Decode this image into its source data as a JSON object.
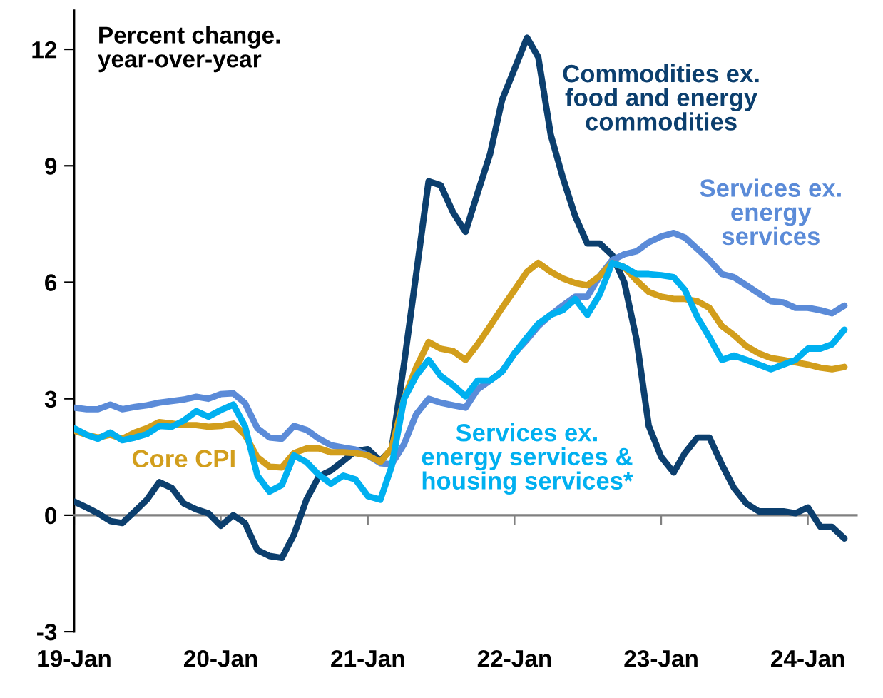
{
  "chart_data": {
    "type": "line",
    "ylabel": "Percent change.\nyear-over-year",
    "x": [
      "2019-01",
      "2019-02",
      "2019-03",
      "2019-04",
      "2019-05",
      "2019-06",
      "2019-07",
      "2019-08",
      "2019-09",
      "2019-10",
      "2019-11",
      "2019-12",
      "2020-01",
      "2020-02",
      "2020-03",
      "2020-04",
      "2020-05",
      "2020-06",
      "2020-07",
      "2020-08",
      "2020-09",
      "2020-10",
      "2020-11",
      "2020-12",
      "2021-01",
      "2021-02",
      "2021-03",
      "2021-04",
      "2021-05",
      "2021-06",
      "2021-07",
      "2021-08",
      "2021-09",
      "2021-10",
      "2021-11",
      "2021-12",
      "2022-01",
      "2022-02",
      "2022-03",
      "2022-04",
      "2022-05",
      "2022-06",
      "2022-07",
      "2022-08",
      "2022-09",
      "2022-10",
      "2022-11",
      "2022-12",
      "2023-01",
      "2023-02",
      "2023-03",
      "2023-04",
      "2023-05",
      "2023-06",
      "2023-07",
      "2023-08",
      "2023-09",
      "2023-10",
      "2023-11",
      "2023-12",
      "2024-01",
      "2024-02",
      "2024-03",
      "2024-04"
    ],
    "series": [
      {
        "name": "Commodities ex.\nfood and energy\ncommodities",
        "color": "#0c3f6e",
        "values": [
          0.35,
          0.2,
          0.05,
          -0.15,
          -0.2,
          0.1,
          0.4,
          0.85,
          0.7,
          0.3,
          0.15,
          0.05,
          -0.27,
          0.0,
          -0.2,
          -0.9,
          -1.05,
          -1.1,
          -0.5,
          0.4,
          1.0,
          1.15,
          1.4,
          1.65,
          1.7,
          1.4,
          1.7,
          3.9,
          6.2,
          8.6,
          8.5,
          7.8,
          7.3,
          8.3,
          9.3,
          10.7,
          11.5,
          12.3,
          11.8,
          9.8,
          8.7,
          7.7,
          7.0,
          7.0,
          6.7,
          6.0,
          4.5,
          2.3,
          1.5,
          1.1,
          1.6,
          2.0,
          2.0,
          1.3,
          0.7,
          0.3,
          0.1,
          0.1,
          0.1,
          0.05,
          0.2,
          -0.3,
          -0.3,
          -0.6
        ]
      },
      {
        "name": "Services ex.\nenergy\nservices",
        "color": "#5b8bd8",
        "values": [
          2.77,
          2.73,
          2.73,
          2.85,
          2.73,
          2.79,
          2.83,
          2.9,
          2.94,
          2.98,
          3.05,
          3.0,
          3.12,
          3.14,
          2.89,
          2.24,
          2.0,
          1.97,
          2.3,
          2.2,
          1.97,
          1.8,
          1.74,
          1.69,
          1.54,
          1.34,
          1.31,
          1.83,
          2.6,
          3.0,
          2.9,
          2.83,
          2.77,
          3.24,
          3.47,
          3.7,
          4.17,
          4.52,
          4.87,
          5.16,
          5.4,
          5.63,
          5.63,
          6.16,
          6.57,
          6.72,
          6.8,
          7.03,
          7.18,
          7.27,
          7.15,
          6.86,
          6.57,
          6.21,
          6.13,
          5.92,
          5.71,
          5.51,
          5.48,
          5.34,
          5.34,
          5.28,
          5.2,
          5.4
        ]
      },
      {
        "name": "Core CPI",
        "color": "#d29e1c",
        "values": [
          2.18,
          2.07,
          2.0,
          2.07,
          1.97,
          2.13,
          2.24,
          2.4,
          2.36,
          2.32,
          2.32,
          2.28,
          2.3,
          2.36,
          2.07,
          1.49,
          1.25,
          1.23,
          1.6,
          1.72,
          1.72,
          1.62,
          1.62,
          1.6,
          1.54,
          1.37,
          1.72,
          3.0,
          3.8,
          4.46,
          4.29,
          4.23,
          4.0,
          4.4,
          4.87,
          5.34,
          5.8,
          6.27,
          6.5,
          6.27,
          6.1,
          5.98,
          5.92,
          6.16,
          6.5,
          6.39,
          6.04,
          5.75,
          5.63,
          5.57,
          5.57,
          5.51,
          5.34,
          4.87,
          4.64,
          4.35,
          4.17,
          4.05,
          4.0,
          3.94,
          3.88,
          3.8,
          3.76,
          3.82
        ]
      },
      {
        "name": "Services ex.\nenergy services &\nhousing services*",
        "color": "#00b0f0",
        "values": [
          2.24,
          2.07,
          1.97,
          2.13,
          1.93,
          2.0,
          2.09,
          2.3,
          2.28,
          2.44,
          2.68,
          2.54,
          2.71,
          2.85,
          2.3,
          1.02,
          0.61,
          0.78,
          1.54,
          1.37,
          1.04,
          0.81,
          1.02,
          0.92,
          0.49,
          0.4,
          1.25,
          3.0,
          3.59,
          4.0,
          3.59,
          3.35,
          3.06,
          3.47,
          3.47,
          3.7,
          4.17,
          4.58,
          4.93,
          5.16,
          5.28,
          5.57,
          5.16,
          5.69,
          6.5,
          6.39,
          6.21,
          6.21,
          6.18,
          6.13,
          5.8,
          5.1,
          4.58,
          4.0,
          4.11,
          4.0,
          3.88,
          3.76,
          3.88,
          4.0,
          4.29,
          4.29,
          4.4,
          4.78
        ]
      }
    ],
    "xlim": [
      "2019-01",
      "2024-05"
    ],
    "xticks": [
      {
        "value": "2019-01",
        "label": "19-Jan"
      },
      {
        "value": "2020-01",
        "label": "20-Jan"
      },
      {
        "value": "2021-01",
        "label": "21-Jan"
      },
      {
        "value": "2022-01",
        "label": "22-Jan"
      },
      {
        "value": "2023-01",
        "label": "23-Jan"
      },
      {
        "value": "2024-01",
        "label": "24-Jan"
      }
    ],
    "ylim": [
      -3,
      13
    ],
    "yticks": [
      -3,
      0,
      3,
      6,
      9,
      12
    ],
    "legend": false,
    "line_style": "solid",
    "marker": "none"
  }
}
